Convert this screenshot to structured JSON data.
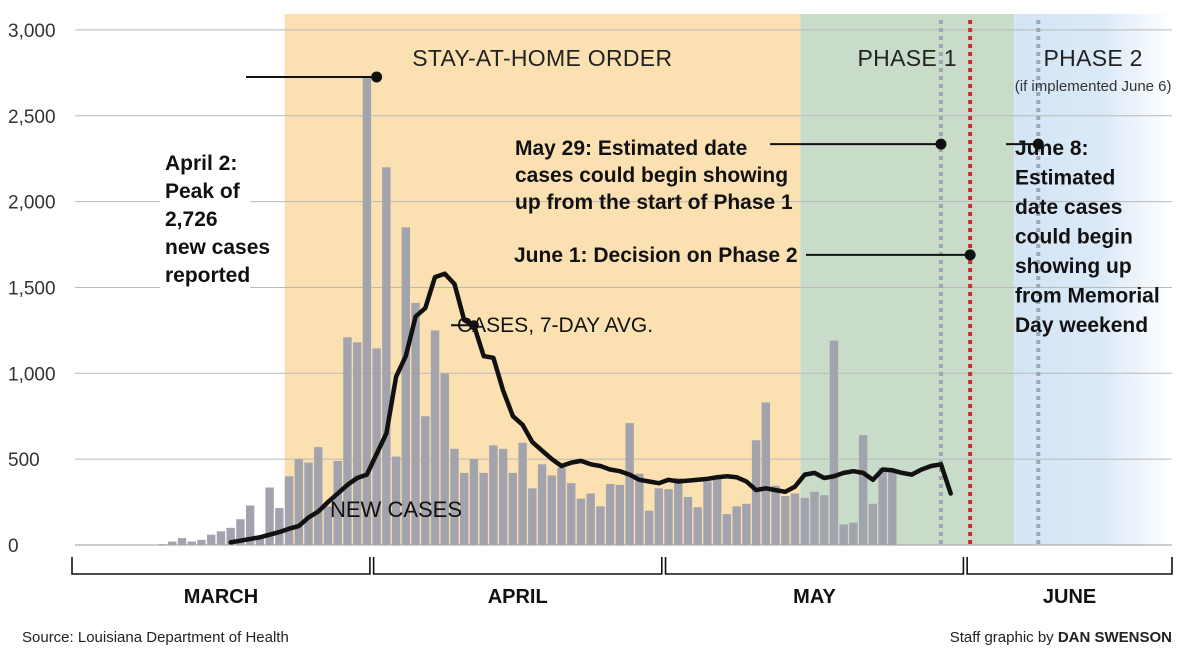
{
  "chart_data": {
    "type": "bar",
    "ylim": [
      0,
      3000
    ],
    "y_ticks": [
      "0",
      "500",
      "1,000",
      "1,500",
      "2,000",
      "2,500",
      "3,000"
    ],
    "grid": true,
    "x_start_date": "March 1",
    "x_end_date": "June 30",
    "months": [
      "MARCH",
      "APRIL",
      "MAY",
      "JUNE"
    ],
    "bar_color": "#a3a3ad",
    "series": [
      {
        "name": "NEW CASES",
        "start_date": "March 1",
        "values": [
          0,
          0,
          0,
          0,
          0,
          0,
          0,
          0,
          1,
          5,
          20,
          40,
          20,
          30,
          60,
          80,
          100,
          150,
          230,
          50,
          335,
          215,
          400,
          500,
          480,
          570,
          225,
          490,
          1210,
          1180,
          2726,
          1145,
          2200,
          515,
          1850,
          1410,
          750,
          1250,
          1000,
          560,
          420,
          500,
          420,
          580,
          560,
          420,
          595,
          330,
          470,
          405,
          450,
          360,
          270,
          300,
          225,
          355,
          350,
          710,
          415,
          200,
          330,
          325,
          390,
          280,
          220,
          370,
          395,
          180,
          225,
          240,
          610,
          830,
          345,
          285,
          300,
          275,
          310,
          290,
          1190,
          120,
          130,
          640,
          240,
          450,
          430
        ]
      },
      {
        "name": "CASES, 7-DAY AVG.",
        "start_date": "March 17",
        "values": [
          15,
          25,
          35,
          45,
          60,
          75,
          95,
          110,
          160,
          195,
          250,
          300,
          350,
          390,
          410,
          530,
          650,
          980,
          1100,
          1330,
          1380,
          1560,
          1580,
          1520,
          1310,
          1280,
          1100,
          1090,
          900,
          750,
          700,
          600,
          550,
          500,
          460,
          480,
          490,
          470,
          460,
          440,
          430,
          410,
          380,
          370,
          360,
          380,
          370,
          375,
          380,
          385,
          395,
          400,
          395,
          370,
          320,
          330,
          320,
          310,
          340,
          410,
          420,
          390,
          400,
          420,
          430,
          420,
          380,
          440,
          435,
          420,
          410,
          440,
          460,
          470,
          300
        ]
      }
    ],
    "phases": [
      {
        "label": "STAY-AT-HOME ORDER",
        "start_date": "March 23",
        "end_date": "May 14",
        "color": "#fbe0b2"
      },
      {
        "label": "PHASE 1",
        "start_date": "May 15",
        "end_date": "June 5",
        "color": "#c8dcc9"
      },
      {
        "label": "PHASE 2",
        "sublabel": "(if implemented June 6)",
        "start_date": "June 6",
        "end_date": "June 30",
        "color": "#d3e5f5"
      }
    ],
    "marker_lines": [
      {
        "date": "May 29",
        "color": "#9ea6b2",
        "style": "dotted"
      },
      {
        "date": "June 1",
        "color": "#d7262f",
        "style": "dotted"
      },
      {
        "date": "June 8",
        "color": "#9ea6b2",
        "style": "dotted"
      }
    ],
    "annotations": [
      {
        "lines": [
          "April 2:",
          "Peak of",
          "2,726",
          "new cases",
          "reported"
        ],
        "date": "April 1",
        "value": 2726
      },
      {
        "lines": [
          "May 29: Estimated date",
          "cases could begin showing",
          "up from the start of Phase 1"
        ],
        "date": "May 29",
        "value": 2335
      },
      {
        "lines": [
          "June 1: Decision on Phase 2"
        ],
        "date": "June 1",
        "value": 1690
      },
      {
        "lines": [
          "June 8:",
          "Estimated",
          "date cases",
          "could begin",
          "showing up",
          "from Memorial",
          "Day weekend"
        ],
        "date": "June 8",
        "value": 2335
      }
    ],
    "series_labels": {
      "avg": "CASES, 7-DAY AVG.",
      "new_cases": "NEW CASES"
    }
  },
  "footer": {
    "source": "Source: Louisiana Department of Health",
    "credit_prefix": "Staff graphic by",
    "credit_name": "DAN SWENSON"
  }
}
